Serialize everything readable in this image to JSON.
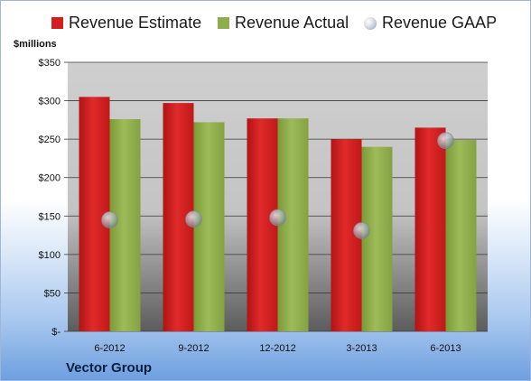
{
  "chart_data": {
    "type": "bar",
    "unit_label": "$millions",
    "company": "Vector Group",
    "categories": [
      "6-2012",
      "9-2012",
      "12-2012",
      "3-2013",
      "6-2013"
    ],
    "series": [
      {
        "name": "Revenue Estimate",
        "type": "bar",
        "color": "#d21e1e",
        "values": [
          305,
          297,
          277,
          250,
          265
        ]
      },
      {
        "name": "Revenue Actual",
        "type": "bar",
        "color": "#8fad4a",
        "values": [
          276,
          272,
          277,
          240,
          249
        ]
      },
      {
        "name": "Revenue GAAP",
        "type": "marker",
        "color": "#b9c3d0",
        "values": [
          145,
          146,
          148,
          131,
          248
        ]
      }
    ],
    "ylim": [
      0,
      350
    ],
    "yticks": [
      0,
      50,
      100,
      150,
      200,
      250,
      300,
      350
    ],
    "ytick_labels": [
      "$-",
      "$50",
      "$100",
      "$150",
      "$200",
      "$250",
      "$300",
      "$350"
    ],
    "grid": true,
    "legend_position": "top"
  }
}
